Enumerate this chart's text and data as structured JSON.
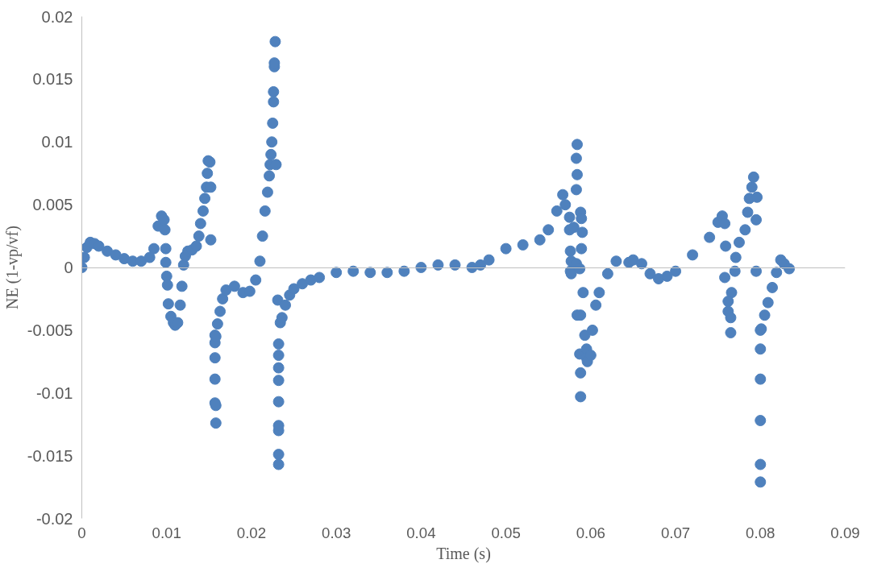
{
  "chart_data": {
    "type": "scatter",
    "xlabel": "Time (s)",
    "ylabel": "NE (1-vp/vf)",
    "xlim": [
      0,
      0.09
    ],
    "ylim": [
      -0.02,
      0.02
    ],
    "xticks": [
      0,
      0.01,
      0.02,
      0.03,
      0.04,
      0.05,
      0.06,
      0.07,
      0.08,
      0.09
    ],
    "yticks": [
      -0.02,
      -0.015,
      -0.01,
      -0.005,
      0,
      0.005,
      0.01,
      0.015,
      0.02
    ],
    "marker": "circle",
    "series": [
      {
        "color": "#4f81bd",
        "x": [
          0,
          0.0003,
          0.0006,
          0.001,
          0.0015,
          0.002,
          0.003,
          0.004,
          0.005,
          0.006,
          0.007,
          0.008,
          0.0085,
          0.009,
          0.0094,
          0.0097,
          0.0098,
          0.0099,
          0.0099,
          0.01,
          0.0101,
          0.0102,
          0.0105,
          0.0108,
          0.011,
          0.0113,
          0.0116,
          0.0118,
          0.012,
          0.0122,
          0.0125,
          0.013,
          0.0135,
          0.0138,
          0.014,
          0.0143,
          0.0145,
          0.0147,
          0.0148,
          0.0149,
          0.0151,
          0.0152,
          0.0152,
          0.0157,
          0.0157,
          0.0157,
          0.0157,
          0.0157,
          0.0158,
          0.0158,
          0.0158,
          0.016,
          0.0163,
          0.0166,
          0.017,
          0.018,
          0.019,
          0.0198,
          0.0205,
          0.021,
          0.0213,
          0.0216,
          0.0219,
          0.0221,
          0.0222,
          0.0223,
          0.0224,
          0.0225,
          0.0226,
          0.0226,
          0.0227,
          0.0227,
          0.0228,
          0.0229,
          0.0231,
          0.0232,
          0.0232,
          0.0232,
          0.0232,
          0.0232,
          0.0232,
          0.0232,
          0.0232,
          0.0232,
          0.0234,
          0.0236,
          0.024,
          0.0245,
          0.025,
          0.026,
          0.027,
          0.028,
          0.03,
          0.032,
          0.034,
          0.036,
          0.038,
          0.04,
          0.042,
          0.044,
          0.046,
          0.047,
          0.048,
          0.05,
          0.052,
          0.054,
          0.055,
          0.056,
          0.0567,
          0.057,
          0.0575,
          0.0575,
          0.058,
          0.0576,
          0.0577,
          0.0576,
          0.0577,
          0.0583,
          0.0583,
          0.0584,
          0.0583,
          0.0584,
          0.0587,
          0.0588,
          0.0589,
          0.059,
          0.0589,
          0.0584,
          0.0588,
          0.0587,
          0.0588,
          0.0588,
          0.0591,
          0.0593,
          0.0595,
          0.0595,
          0.0596,
          0.06,
          0.0602,
          0.0606,
          0.061,
          0.062,
          0.063,
          0.0645,
          0.065,
          0.066,
          0.067,
          0.068,
          0.069,
          0.07,
          0.072,
          0.074,
          0.075,
          0.0755,
          0.0758,
          0.0759,
          0.0758,
          0.0766,
          0.0762,
          0.0762,
          0.0765,
          0.0765,
          0.0771,
          0.077,
          0.0775,
          0.0782,
          0.0785,
          0.0787,
          0.079,
          0.0792,
          0.0796,
          0.0795,
          0.0795,
          0.08,
          0.0801,
          0.08,
          0.08,
          0.08,
          0.08,
          0.08,
          0.0805,
          0.0809,
          0.0814,
          0.0819,
          0.0824,
          0.0828,
          0.0834
        ],
        "values": [
          0,
          0.0008,
          0.0016,
          0.002,
          0.0019,
          0.0017,
          0.0013,
          0.001,
          0.0007,
          0.0005,
          0.0005,
          0.0008,
          0.0015,
          0.0033,
          0.0041,
          0.0038,
          0.003,
          0.0015,
          0.0004,
          -0.0007,
          -0.0014,
          -0.0029,
          -0.0039,
          -0.0044,
          -0.0046,
          -0.0044,
          -0.003,
          -0.0015,
          0.0002,
          0.0009,
          0.0013,
          0.0014,
          0.0017,
          0.0025,
          0.0035,
          0.0045,
          0.0055,
          0.0064,
          0.0075,
          0.0085,
          0.0084,
          0.0064,
          0.0022,
          -0.0054,
          -0.006,
          -0.0072,
          -0.0089,
          -0.0108,
          -0.011,
          -0.0124,
          -0.0055,
          -0.0045,
          -0.0035,
          -0.0025,
          -0.0018,
          -0.0015,
          -0.002,
          -0.0019,
          -0.001,
          0.0005,
          0.0025,
          0.0045,
          0.006,
          0.0073,
          0.0082,
          0.009,
          0.01,
          0.0115,
          0.0132,
          0.014,
          0.016,
          0.0163,
          0.018,
          0.0082,
          -0.0026,
          -0.0157,
          -0.0149,
          -0.013,
          -0.0126,
          -0.0107,
          -0.009,
          -0.008,
          -0.007,
          -0.0061,
          -0.0044,
          -0.004,
          -0.003,
          -0.0022,
          -0.0017,
          -0.0013,
          -0.001,
          -0.0008,
          -0.0004,
          -0.0003,
          -0.0004,
          -0.0004,
          -0.0003,
          0,
          0.0002,
          0.0002,
          0,
          0.0002,
          0.0006,
          0.0015,
          0.0018,
          0.0022,
          0.003,
          0.0045,
          0.0058,
          0.005,
          0.004,
          0.003,
          0.0032,
          0.0013,
          0.0005,
          -0.0003,
          -0.0005,
          0.0003,
          0.0062,
          0.0074,
          0.0087,
          0.0098,
          -0.0001,
          0.0044,
          0.0039,
          0.0028,
          0.0015,
          -0.0038,
          -0.0038,
          -0.0069,
          -0.0084,
          -0.0103,
          -0.002,
          -0.0054,
          -0.0065,
          -0.0072,
          -0.0075,
          -0.007,
          -0.005,
          -0.003,
          -0.002,
          -0.0005,
          0.0005,
          0.0004,
          0.0006,
          0.0003,
          -0.0005,
          -0.0009,
          -0.0007,
          -0.0003,
          0.001,
          0.0024,
          0.0036,
          0.0041,
          0.0035,
          0.0017,
          -0.0008,
          -0.002,
          -0.0027,
          -0.0035,
          -0.004,
          -0.0052,
          0.0008,
          -0.0003,
          0.002,
          0.003,
          0.0044,
          0.0055,
          0.0064,
          0.0072,
          0.0056,
          0.0038,
          -0.0003,
          -0.005,
          -0.0049,
          -0.0065,
          -0.0089,
          -0.0122,
          -0.0157,
          -0.0171,
          -0.0038,
          -0.0028,
          -0.0016,
          -0.0004,
          0.0006,
          0.0003,
          -0.0001
        ]
      }
    ]
  }
}
